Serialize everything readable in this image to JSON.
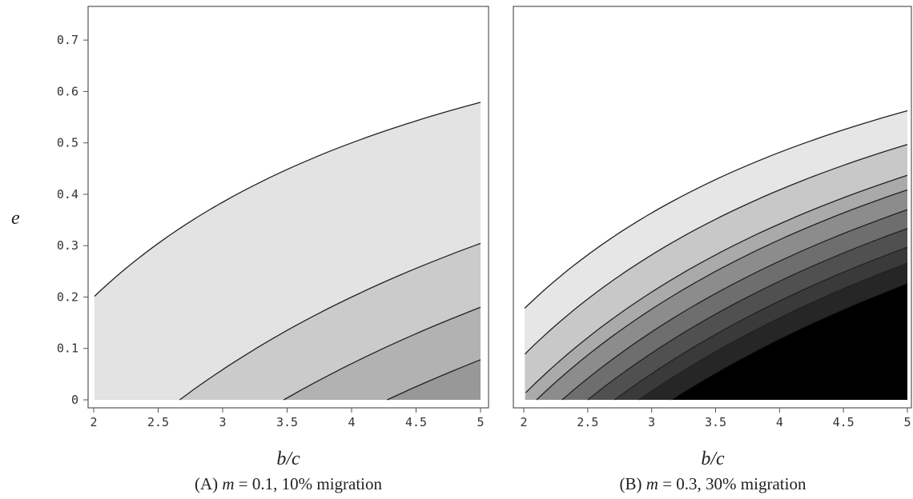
{
  "chart_data": [
    {
      "type": "contour",
      "panel": "A",
      "caption": "(A) m = 0.1, 10% migration",
      "caption_parts": {
        "prefix": "(A) ",
        "var": "m",
        "rest": " = 0.1, 10% migration"
      },
      "xlabel": "b/c",
      "ylabel": "e",
      "xlim": [
        2,
        5
      ],
      "ylim": [
        0,
        0.75
      ],
      "x_ticks": [
        "2",
        "2.5",
        "3",
        "3.5",
        "4",
        "4.5",
        "5"
      ],
      "y_ticks": [
        "0",
        "0.1",
        "0.2",
        "0.3",
        "0.4",
        "0.5",
        "0.6",
        "0.7"
      ],
      "contour_b0": [
        1.3333,
        2.6667,
        3.4737,
        4.2759
      ],
      "fill_colors": [
        "#ffffff",
        "#e3e3e3",
        "#cbcbcb",
        "#b2b2b2",
        "#989898"
      ],
      "grid": false
    },
    {
      "type": "contour",
      "panel": "B",
      "caption": "(B) m = 0.3, 30% migration",
      "caption_parts": {
        "prefix": "(B) ",
        "var": "m",
        "rest": " = 0.3, 30% migration"
      },
      "xlabel": "b/c",
      "ylabel": "",
      "xlim": [
        2,
        5
      ],
      "ylim": [
        0,
        0.75
      ],
      "x_ticks": [
        "2",
        "2.5",
        "3",
        "3.5",
        "4",
        "4.5",
        "5"
      ],
      "y_ticks": [],
      "contour_b0": [
        1.4,
        1.68,
        1.96,
        2.1,
        2.3,
        2.5,
        2.71,
        2.9,
        3.15
      ],
      "fill_colors": [
        "#ffffff",
        "#e6e6e6",
        "#c8c8c8",
        "#aaaaaa",
        "#8c8c8c",
        "#6e6e6e",
        "#505050",
        "#3a3a3a",
        "#262626",
        "#000000"
      ],
      "grid": false
    }
  ],
  "colors": {
    "contour_line": "#222222",
    "background": "#ffffff",
    "frame": "#555555"
  }
}
